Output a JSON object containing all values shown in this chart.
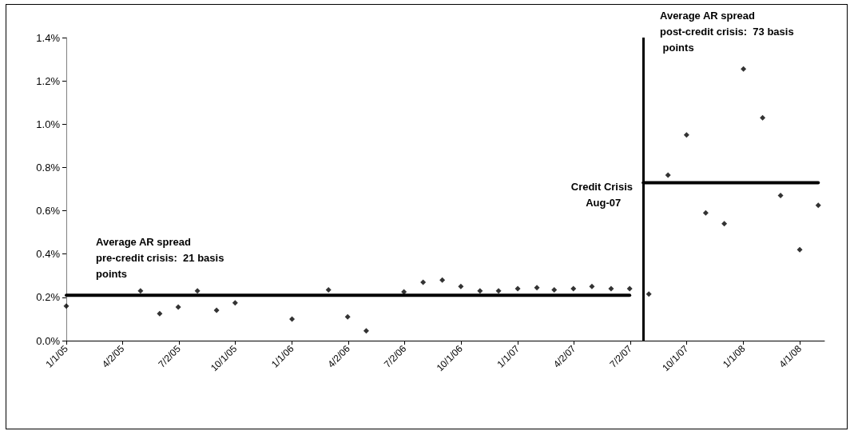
{
  "chart_data": {
    "type": "scatter",
    "xlim": [
      "2005-01-01",
      "2008-05-11"
    ],
    "xticks": [
      {
        "value": "2005-01-01",
        "label": "1/1/05"
      },
      {
        "value": "2005-04-02",
        "label": "4/2/05"
      },
      {
        "value": "2005-07-02",
        "label": "7/2/05"
      },
      {
        "value": "2005-10-01",
        "label": "10/1/05"
      },
      {
        "value": "2006-01-01",
        "label": "1/1/06"
      },
      {
        "value": "2006-04-02",
        "label": "4/2/06"
      },
      {
        "value": "2006-07-02",
        "label": "7/2/06"
      },
      {
        "value": "2006-10-01",
        "label": "10/1/06"
      },
      {
        "value": "2007-01-01",
        "label": "1/1/07"
      },
      {
        "value": "2007-04-02",
        "label": "4/2/07"
      },
      {
        "value": "2007-07-02",
        "label": "7/2/07"
      },
      {
        "value": "2007-10-01",
        "label": "10/1/07"
      },
      {
        "value": "2008-01-01",
        "label": "1/1/08"
      },
      {
        "value": "2008-04-01",
        "label": "4/1/08"
      }
    ],
    "ylim": [
      0,
      1.4
    ],
    "yticks": [
      {
        "value": 0,
        "label": "0.0%"
      },
      {
        "value": 0.2,
        "label": "0.2%"
      },
      {
        "value": 0.4,
        "label": "0.4%"
      },
      {
        "value": 0.6,
        "label": "0.6%"
      },
      {
        "value": 0.8,
        "label": "0.8%"
      },
      {
        "value": 1.0,
        "label": "1.0%"
      },
      {
        "value": 1.2,
        "label": "1.2%"
      },
      {
        "value": 1.4,
        "label": "1.4%"
      }
    ],
    "grid": false,
    "series": [
      {
        "marker": "diamond",
        "color": "#000000",
        "x": [
          "2005-01-01",
          "2005-05-01",
          "2005-06-01",
          "2005-07-01",
          "2005-08-01",
          "2005-09-01",
          "2005-10-01",
          "2006-01-01",
          "2006-03-01",
          "2006-04-01",
          "2006-05-01",
          "2006-07-01",
          "2006-08-01",
          "2006-09-01",
          "2006-10-01",
          "2006-11-01",
          "2006-12-01",
          "2007-01-01",
          "2007-02-01",
          "2007-03-01",
          "2007-04-01",
          "2007-05-01",
          "2007-06-01",
          "2007-07-01",
          "2007-08-01",
          "2007-09-01",
          "2007-10-01",
          "2007-11-01",
          "2007-12-01",
          "2008-01-01",
          "2008-02-01",
          "2008-03-01",
          "2008-04-01",
          "2008-05-01"
        ],
        "values": [
          0.16,
          0.23,
          0.125,
          0.155,
          0.23,
          0.14,
          0.175,
          0.1,
          0.235,
          0.11,
          0.045,
          0.225,
          0.27,
          0.28,
          0.25,
          0.23,
          0.23,
          0.24,
          0.245,
          0.235,
          0.24,
          0.25,
          0.24,
          0.24,
          0.215,
          0.765,
          0.95,
          0.59,
          0.54,
          1.255,
          1.03,
          0.67,
          0.42,
          0.625
        ]
      },
      {
        "type": "line",
        "marker": "none",
        "line_style": "solid",
        "color": "#000000",
        "x": [
          "2005-01-01",
          "2007-07-01"
        ],
        "values": [
          0.21,
          0.21
        ]
      },
      {
        "type": "line",
        "marker": "none",
        "line_style": "solid",
        "color": "#000000",
        "x": [
          "2007-07-23",
          "2008-05-01"
        ],
        "values": [
          0.73,
          0.73
        ]
      }
    ],
    "ref_lines": [
      {
        "axis": "x",
        "value": "2007-07-23",
        "label": "Credit Crisis Aug-07",
        "color": "#000000",
        "line_style": "solid"
      }
    ],
    "annotations": [
      "Average AR spread pre-credit crisis:  21 basis points",
      "Average AR spread post-credit crisis:  73 basis points"
    ]
  }
}
